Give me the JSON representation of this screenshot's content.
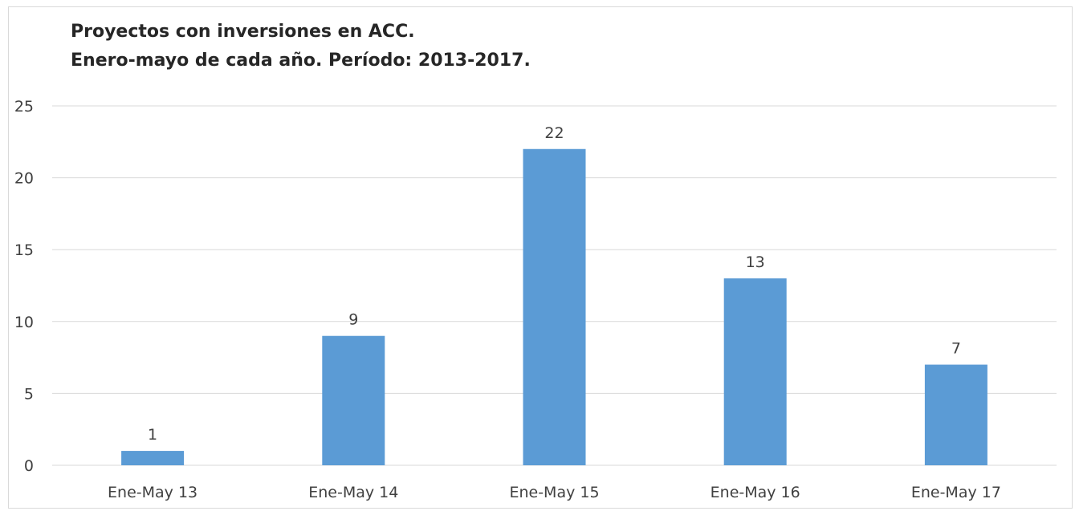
{
  "chart_data": {
    "type": "bar",
    "title": "Proyectos con inversiones en ACC.",
    "subtitle": "Enero-mayo de cada año. Período: 2013-2017.",
    "categories": [
      "Ene-May 13",
      "Ene-May 14",
      "Ene-May 15",
      "Ene-May 16",
      "Ene-May 17"
    ],
    "values": [
      1,
      9,
      22,
      13,
      7
    ],
    "data_labels": [
      "1",
      "9",
      "22",
      "13",
      "7"
    ],
    "ylim": [
      0,
      25
    ],
    "yticks": [
      "0",
      "5",
      "10",
      "15",
      "20",
      "25"
    ],
    "xlabel": "",
    "ylabel": "",
    "grid": true,
    "legend": "none",
    "bar_color": "#5b9bd5",
    "grid_color": "#d9d9d9",
    "text_color": "#404040"
  }
}
